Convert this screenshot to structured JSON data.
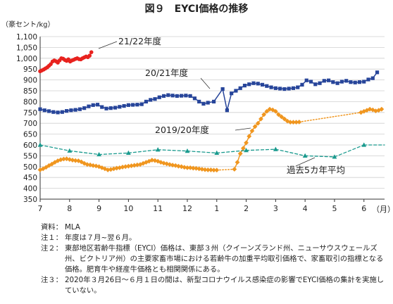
{
  "chart_data": {
    "type": "line",
    "title": "図９　EYCI価格の推移",
    "ylabel": "（豪セント/kg）",
    "xunit": "（月）",
    "ylim": [
      350,
      1100
    ],
    "yticks": [
      350,
      400,
      450,
      500,
      550,
      600,
      650,
      700,
      750,
      800,
      850,
      900,
      950,
      1000,
      1050,
      1100
    ],
    "ytick_labels": [
      "350",
      "400",
      "450",
      "500",
      "550",
      "600",
      "650",
      "700",
      "750",
      "800",
      "850",
      "900",
      "950",
      "1,000",
      "1,050",
      "1,100"
    ],
    "xticks": [
      0,
      1,
      2,
      3,
      4,
      5,
      6,
      7,
      8,
      9,
      10,
      11
    ],
    "xtick_labels": [
      "7",
      "8",
      "9",
      "10",
      "11",
      "12",
      "1",
      "2",
      "3",
      "4",
      "5",
      "6"
    ],
    "xlim": [
      0,
      11.7
    ],
    "grid": "horizontal",
    "colors": {
      "y2122": "#e8221e",
      "y2021": "#27459a",
      "y1920": "#f0961f",
      "avg5": "#1a9a8e",
      "grid": "#cfcfcf",
      "axis": "#333333"
    },
    "series": [
      {
        "name": "21/22年度",
        "color": "#e8221e",
        "marker": "circle",
        "x": [
          0.0,
          0.06,
          0.12,
          0.18,
          0.24,
          0.3,
          0.36,
          0.42,
          0.48,
          0.54,
          0.6,
          0.66,
          0.72,
          0.78,
          0.84,
          0.9,
          0.96,
          1.02,
          1.08,
          1.14,
          1.2,
          1.26,
          1.32,
          1.38,
          1.44,
          1.5,
          1.56,
          1.62,
          1.68,
          1.74
        ],
        "y": [
          940,
          944,
          948,
          953,
          958,
          965,
          973,
          985,
          990,
          986,
          980,
          990,
          1000,
          998,
          992,
          988,
          995,
          985,
          990,
          993,
          997,
          1000,
          996,
          995,
          1000,
          1004,
          1008,
          1005,
          1012,
          1028
        ]
      },
      {
        "name": "20/21年度",
        "color": "#27459a",
        "marker": "square",
        "x": [
          0.0,
          0.15,
          0.3,
          0.45,
          0.6,
          0.75,
          0.9,
          1.05,
          1.2,
          1.35,
          1.5,
          1.65,
          1.8,
          1.95,
          2.1,
          2.25,
          2.4,
          2.55,
          2.7,
          2.85,
          3.0,
          3.15,
          3.3,
          3.45,
          3.6,
          3.75,
          3.9,
          4.05,
          4.2,
          4.35,
          4.5,
          4.65,
          4.8,
          4.95,
          5.1,
          5.25,
          5.4,
          5.55,
          5.7,
          5.9,
          6.2,
          6.35,
          6.5,
          6.65,
          6.8,
          6.95,
          7.1,
          7.25,
          7.4,
          7.55,
          7.7,
          7.85,
          8.0,
          8.15,
          8.3,
          8.45,
          8.6,
          8.75,
          8.9,
          9.05,
          9.2,
          9.35,
          9.5,
          9.65,
          9.8,
          9.95,
          10.1,
          10.25,
          10.4,
          10.55,
          10.7,
          10.85,
          11.0,
          11.15,
          11.3,
          11.45
        ],
        "y": [
          765,
          760,
          756,
          752,
          750,
          752,
          757,
          760,
          762,
          765,
          770,
          778,
          784,
          786,
          775,
          768,
          770,
          772,
          776,
          780,
          784,
          785,
          786,
          788,
          800,
          808,
          812,
          820,
          826,
          830,
          828,
          826,
          827,
          828,
          826,
          815,
          800,
          790,
          795,
          800,
          858,
          760,
          838,
          850,
          862,
          874,
          880,
          885,
          883,
          878,
          872,
          866,
          862,
          860,
          858,
          860,
          862,
          866,
          878,
          898,
          892,
          880,
          885,
          896,
          898,
          890,
          885,
          892,
          896,
          890,
          888,
          890,
          892,
          902,
          908,
          935
        ]
      },
      {
        "name": "2019/20年度",
        "color": "#f0961f",
        "marker": "diamond",
        "x": [
          0.0,
          0.1,
          0.2,
          0.3,
          0.4,
          0.5,
          0.6,
          0.7,
          0.8,
          0.9,
          1.0,
          1.1,
          1.2,
          1.3,
          1.4,
          1.5,
          1.6,
          1.7,
          1.8,
          1.9,
          2.0,
          2.1,
          2.2,
          2.3,
          2.4,
          2.5,
          2.6,
          2.7,
          2.8,
          2.9,
          3.0,
          3.1,
          3.2,
          3.3,
          3.4,
          3.5,
          3.6,
          3.7,
          3.8,
          3.9,
          4.0,
          4.1,
          4.2,
          4.3,
          4.4,
          4.5,
          4.6,
          4.7,
          4.8,
          4.9,
          5.0,
          5.1,
          5.2,
          5.3,
          5.4,
          5.5,
          5.6,
          5.7,
          5.8,
          5.9,
          6.0,
          6.6,
          6.7,
          6.8,
          6.9,
          7.0,
          7.1,
          7.2,
          7.3,
          7.4,
          7.5,
          7.6,
          7.7,
          7.8,
          7.9,
          8.0,
          8.1,
          8.2,
          8.3,
          8.4,
          8.5,
          8.6,
          8.7,
          8.8,
          10.9,
          11.0,
          11.1,
          11.2,
          11.3,
          11.4,
          11.5,
          11.6
        ],
        "y": [
          485,
          490,
          497,
          505,
          512,
          520,
          527,
          532,
          535,
          536,
          533,
          530,
          528,
          527,
          522,
          515,
          510,
          508,
          505,
          503,
          500,
          495,
          490,
          485,
          487,
          490,
          493,
          495,
          498,
          500,
          502,
          504,
          506,
          508,
          510,
          515,
          520,
          525,
          530,
          528,
          525,
          520,
          516,
          513,
          510,
          507,
          505,
          502,
          500,
          497,
          495,
          495,
          493,
          492,
          490,
          488,
          486,
          485,
          485,
          484,
          484,
          488,
          520,
          560,
          585,
          610,
          640,
          665,
          685,
          700,
          720,
          740,
          755,
          765,
          762,
          755,
          740,
          730,
          720,
          710,
          705,
          705,
          705,
          706,
          750,
          755,
          760,
          765,
          762,
          757,
          760,
          765
        ],
        "gaps_dotted": [
          [
            6.0,
            6.6
          ],
          [
            8.8,
            10.9
          ]
        ]
      },
      {
        "name": "過去5カ年平均",
        "color": "#1a9a8e",
        "marker": "triangle",
        "x": [
          0.0,
          1.0,
          2.0,
          3.0,
          4.0,
          5.0,
          6.0,
          7.0,
          8.0,
          9.0,
          10.0,
          11.0,
          11.7
        ],
        "y": [
          600,
          573,
          556,
          563,
          578,
          572,
          563,
          575,
          580,
          550,
          545,
          600,
          600
        ]
      }
    ],
    "labels": {
      "s2122": "21/22年度",
      "s2021": "20/21年度",
      "s1920": "2019/20年度",
      "avg5": "過去5カ年平均"
    }
  },
  "notes": [
    {
      "label": "資料：",
      "text": "MLA"
    },
    {
      "label": "注１：",
      "text": "年度は７月~翌６月。"
    },
    {
      "label": "注２：",
      "text": "東部地区若齢牛指標（EYCI）価格は、東部３州（クイーンズランド州、ニューサウスウェールズ州、ビクトリア州）の主要家畜市場における若齢牛の加重平均取引価格で、家畜取引の指標となる価格。肥育牛や経産牛価格とも相関関係にある。"
    },
    {
      "label": "注３：",
      "text": "2020年３月26日～６月１日の間は、新型コロナウイルス感染症の影響でEYCI価格の集計を実施していない。"
    }
  ]
}
